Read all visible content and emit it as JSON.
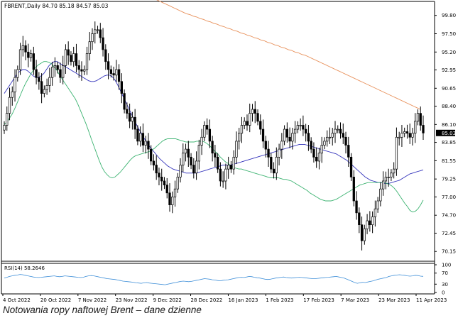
{
  "header": {
    "symbol": "FBRENT",
    "timeframe": "Daily",
    "ohlc": "84.70 85.18 84.57 85.03"
  },
  "current_price_label": "85.03",
  "caption": "Notowania ropy naftowej Brent – dane dzienne",
  "rsi_panel": {
    "label": "RSI(14) 58.2646",
    "levels": [
      100,
      70,
      30,
      0
    ],
    "color": "#3f8fd8"
  },
  "colors": {
    "bull_body": "#ffffff",
    "bear_body": "#000000",
    "candle_outline": "#000000",
    "ma_fast": "#3cb371",
    "ma_mid": "#3333bb",
    "ma_slow": "#e8905a",
    "rsi": "#3f8fd8",
    "price_marker_bg": "#000000",
    "price_marker_text": "#ffffff"
  },
  "chart_data": [
    {
      "type": "candlestick",
      "title": "FBRENT,Daily",
      "y_ticks": [
        "99.80",
        "97.50",
        "95.20",
        "92.95",
        "90.65",
        "88.40",
        "86.10",
        "83.85",
        "81.55",
        "79.25",
        "77.00",
        "74.70",
        "72.45",
        "70.15"
      ],
      "ylim": [
        69.1,
        101.2
      ],
      "x_ticks": [
        "4 Oct 2022",
        "20 Oct 2022",
        "7 Nov 2022",
        "23 Nov 2022",
        "9 Dec 2022",
        "28 Dec 2022",
        "16 Jan 2023",
        "1 Feb 2023",
        "17 Feb 2023",
        "7 Mar 2023",
        "23 Mar 2023",
        "11 Apr 2023"
      ],
      "grid": false,
      "close": [
        86.0,
        87.5,
        89.5,
        90.2,
        92.0,
        93.0,
        95.5,
        96.0,
        95.2,
        94.5,
        95.0,
        93.0,
        92.0,
        91.5,
        90.0,
        90.5,
        91.0,
        92.0,
        93.3,
        93.5,
        93.0,
        92.0,
        93.5,
        95.5,
        94.8,
        94.0,
        95.0,
        93.5,
        93.0,
        92.8,
        93.0,
        95.0,
        96.5,
        97.5,
        98.0,
        98.0,
        97.0,
        95.5,
        94.0,
        93.0,
        92.5,
        92.3,
        93.0,
        91.5,
        90.0,
        88.0,
        87.5,
        86.5,
        87.0,
        85.5,
        84.0,
        85.0,
        83.5,
        84.0,
        83.0,
        81.5,
        81.0,
        80.0,
        79.5,
        79.0,
        78.5,
        77.5,
        76.0,
        77.0,
        78.0,
        79.5,
        81.0,
        82.5,
        83.0,
        82.0,
        81.0,
        80.0,
        81.5,
        83.5,
        84.5,
        86.0,
        85.5,
        84.0,
        82.5,
        82.0,
        80.5,
        79.0,
        79.0,
        80.5,
        81.0,
        80.5,
        82.0,
        84.0,
        85.0,
        86.0,
        86.5,
        86.0,
        87.5,
        88.0,
        87.5,
        86.5,
        85.5,
        84.0,
        83.0,
        82.0,
        80.5,
        80.0,
        82.0,
        83.0,
        84.0,
        85.5,
        84.5,
        84.0,
        85.0,
        85.5,
        86.0,
        86.0,
        85.5,
        85.0,
        84.0,
        83.0,
        82.0,
        81.5,
        82.5,
        83.5,
        84.0,
        84.5,
        84.5,
        85.0,
        85.5,
        85.5,
        85.0,
        84.5,
        83.5,
        82.0,
        79.5,
        76.5,
        75.0,
        73.5,
        71.5,
        73.0,
        74.0,
        73.5,
        74.5,
        75.5,
        76.5,
        78.0,
        79.0,
        79.5,
        79.5,
        80.0,
        80.5,
        84.5,
        84.5,
        85.0,
        85.2,
        85.0,
        84.5,
        85.0,
        86.5,
        87.5,
        86.0,
        85.03
      ],
      "series": [
        {
          "name": "",
          "values": [
            86.1,
            86.4,
            86.9,
            87.4,
            88.1,
            88.9,
            89.7,
            90.5,
            91.2,
            91.8,
            92.4,
            92.9,
            93.3,
            93.6,
            93.8,
            94.0,
            94.0,
            93.9,
            93.7,
            93.3,
            92.9,
            92.3,
            91.8,
            91.3,
            90.8,
            90.3,
            89.8,
            89.3,
            88.6,
            87.8,
            87.0,
            86.2,
            85.3,
            84.3,
            83.4,
            82.5,
            81.6,
            80.8,
            80.2,
            79.8,
            79.5,
            79.4,
            79.5,
            79.8,
            80.1,
            80.5,
            80.9,
            81.3,
            81.7,
            82.0,
            82.2,
            82.3,
            82.4,
            82.5,
            82.6,
            82.7,
            82.9,
            83.1,
            83.4,
            83.7,
            84.0,
            84.2,
            84.3,
            84.3,
            84.3,
            84.3,
            84.2,
            84.1,
            84.0,
            83.9,
            83.9,
            83.9,
            83.9,
            84.0,
            84.0,
            84.0,
            83.9,
            83.7,
            83.4,
            83.1,
            82.7,
            82.4,
            82.0,
            81.7,
            81.4,
            81.2,
            80.9,
            80.7,
            80.6,
            80.5,
            80.5,
            80.4,
            80.3,
            80.2,
            80.1,
            80.0,
            79.9,
            79.8,
            79.7,
            79.6,
            79.5,
            79.4,
            79.4,
            79.4,
            79.4,
            79.3,
            79.2,
            79.2,
            79.1,
            79.0,
            78.8,
            78.6,
            78.4,
            78.2,
            78.0,
            77.8,
            77.5,
            77.3,
            77.1,
            76.9,
            76.7,
            76.6,
            76.5,
            76.5,
            76.5,
            76.6,
            76.7,
            76.9,
            77.1,
            77.3,
            77.5,
            77.7,
            77.9,
            78.1,
            78.3,
            78.5,
            78.6,
            78.7,
            78.8,
            78.8,
            78.8,
            78.8,
            78.8,
            78.8,
            78.8,
            78.7,
            78.6,
            78.4,
            78.1,
            77.7,
            77.2,
            76.7,
            76.2,
            75.8,
            75.3,
            75.1,
            75.2,
            75.5,
            76.0,
            76.6
          ]
        },
        {
          "name": "",
          "values": [
            90.0,
            90.5,
            91.0,
            91.5,
            92.0,
            92.5,
            92.8,
            93.0,
            93.0,
            92.8,
            92.5,
            92.2,
            92.0,
            92.0,
            92.2,
            92.5,
            93.0,
            93.5,
            93.8,
            94.0,
            94.0,
            93.8,
            93.6,
            93.4,
            93.2,
            93.0,
            92.8,
            92.6,
            92.4,
            92.2,
            92.0,
            91.8,
            91.6,
            91.5,
            91.5,
            91.6,
            91.8,
            92.0,
            92.2,
            92.3,
            92.3,
            92.1,
            91.7,
            91.1,
            90.4,
            89.7,
            89.0,
            88.3,
            87.6,
            86.9,
            86.2,
            85.6,
            85.0,
            84.4,
            83.9,
            83.4,
            83.0,
            82.6,
            82.2,
            81.8,
            81.5,
            81.2,
            80.9,
            80.7,
            80.5,
            80.4,
            80.3,
            80.2,
            80.1,
            80.0,
            80.0,
            80.0,
            80.0,
            80.0,
            80.1,
            80.2,
            80.3,
            80.4,
            80.5,
            80.6,
            80.7,
            80.8,
            80.9,
            81.0,
            81.0,
            81.0,
            81.0,
            81.1,
            81.2,
            81.3,
            81.4,
            81.5,
            81.6,
            81.7,
            81.8,
            81.9,
            82.0,
            82.1,
            82.2,
            82.3,
            82.4,
            82.5,
            82.6,
            82.7,
            82.8,
            82.9,
            83.0,
            83.1,
            83.2,
            83.3,
            83.4,
            83.5,
            83.6,
            83.6,
            83.6,
            83.5,
            83.4,
            83.3,
            83.2,
            83.1,
            83.0,
            82.9,
            82.8,
            82.7,
            82.6,
            82.5,
            82.4,
            82.2,
            82.0,
            81.8,
            81.6,
            81.3,
            81.0,
            80.7,
            80.4,
            80.1,
            79.8,
            79.5,
            79.3,
            79.1,
            79.0,
            78.9,
            78.8,
            78.8,
            78.7,
            78.7,
            78.7,
            78.8,
            78.9,
            79.0,
            79.1,
            79.3,
            79.5,
            79.7,
            79.9,
            80.0,
            80.1,
            80.2,
            80.3,
            80.4
          ]
        },
        {
          "name": "",
          "values": [
            102.0,
            101.8,
            101.6,
            101.4,
            101.2,
            101.0,
            100.8,
            100.6,
            100.4,
            100.2,
            100.0,
            99.9,
            99.7,
            99.6,
            99.4,
            99.3,
            99.1,
            99.0,
            98.8,
            98.7,
            98.5,
            98.4,
            98.2,
            98.1,
            97.9,
            97.8,
            97.6,
            97.5,
            97.3,
            97.2,
            97.0,
            96.9,
            96.7,
            96.6,
            96.4,
            96.3,
            96.1,
            96.0,
            95.8,
            95.7,
            95.5,
            95.4,
            95.2,
            95.1,
            94.9,
            94.8,
            94.6,
            94.4,
            94.2,
            94.0,
            93.8,
            93.6,
            93.4,
            93.2,
            93.0,
            92.8,
            92.6,
            92.4,
            92.2,
            92.0,
            91.8,
            91.6,
            91.4,
            91.2,
            91.0,
            90.8,
            90.6,
            90.4,
            90.2,
            90.0,
            89.8,
            89.6,
            89.4,
            89.2,
            89.0,
            88.8,
            88.6,
            88.4,
            88.2,
            88.0
          ]
        }
      ]
    },
    {
      "type": "line",
      "title": "RSI(14) 58.2646",
      "ylim": [
        0,
        100
      ],
      "y_ticks": [
        100,
        70,
        30,
        0
      ],
      "series": [
        {
          "name": "RSI(14)",
          "values": [
            52,
            55,
            58,
            60,
            62,
            63,
            65,
            64,
            62,
            60,
            58,
            56,
            55,
            54,
            55,
            56,
            57,
            58,
            59,
            60,
            58,
            57,
            58,
            60,
            59,
            58,
            57,
            56,
            55,
            54,
            55,
            58,
            60,
            61,
            60,
            58,
            56,
            54,
            52,
            50,
            49,
            48,
            47,
            45,
            43,
            41,
            40,
            39,
            38,
            37,
            35,
            34,
            33,
            35,
            36,
            34,
            33,
            32,
            31,
            30,
            29,
            28,
            30,
            32,
            34,
            36,
            38,
            40,
            41,
            40,
            39,
            40,
            42,
            44,
            46,
            48,
            50,
            49,
            48,
            46,
            45,
            43,
            42,
            44,
            45,
            46,
            48,
            50,
            52,
            54,
            55,
            54,
            56,
            58,
            57,
            55,
            53,
            52,
            50,
            48,
            47,
            48,
            50,
            52,
            53,
            55,
            56,
            54,
            53,
            52,
            53,
            54,
            55,
            54,
            53,
            52,
            51,
            50,
            50,
            51,
            52,
            53,
            54,
            55,
            56,
            57,
            58,
            56,
            54,
            52,
            48,
            44,
            40,
            36,
            33,
            35,
            37,
            36,
            38,
            40,
            42,
            45,
            48,
            50,
            52,
            54,
            58,
            60,
            62,
            63,
            64,
            63,
            62,
            60,
            59,
            60,
            62,
            61,
            59,
            58.2646
          ]
        }
      ]
    }
  ]
}
